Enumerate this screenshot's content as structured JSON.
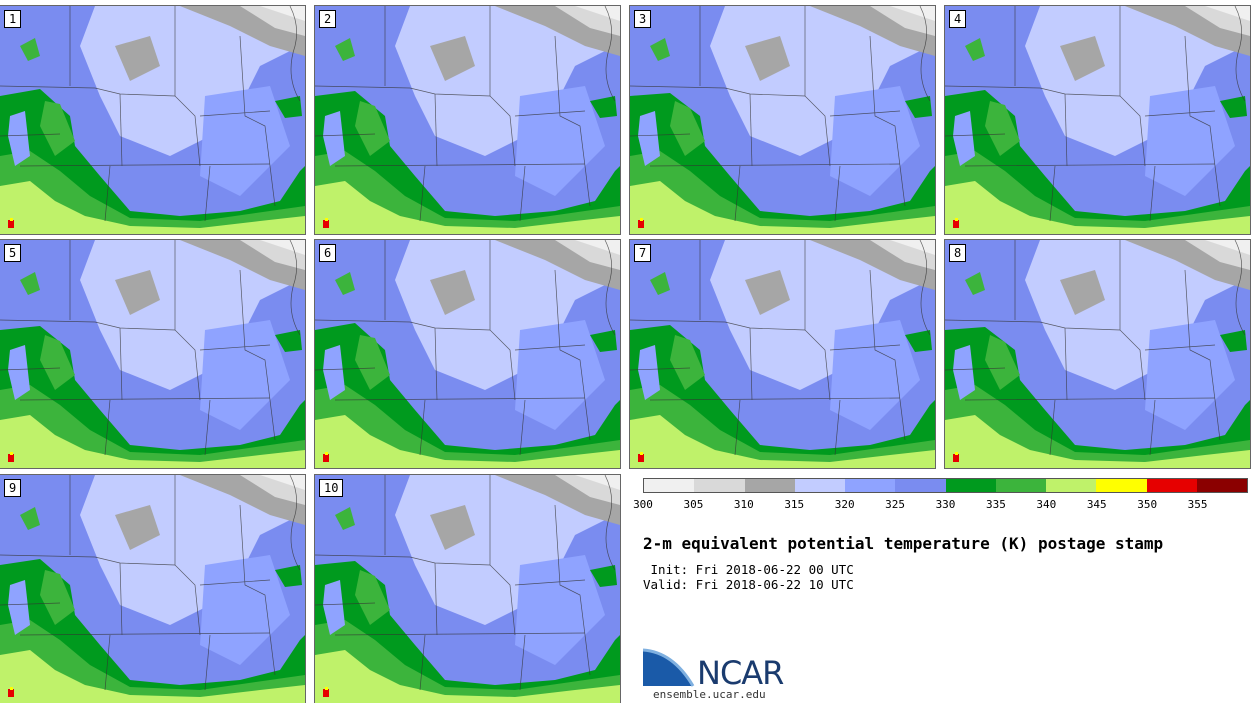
{
  "members": [
    {
      "label": "1"
    },
    {
      "label": "2"
    },
    {
      "label": "3"
    },
    {
      "label": "4"
    },
    {
      "label": "5"
    },
    {
      "label": "6"
    },
    {
      "label": "7"
    },
    {
      "label": "8"
    },
    {
      "label": "9"
    },
    {
      "label": "10"
    }
  ],
  "colorbar": {
    "colors": [
      "#f0f0f0",
      "#d9d9d9",
      "#a6a6a6",
      "#c2ccff",
      "#8fa3ff",
      "#7a8cf0",
      "#009a1e",
      "#3cb43c",
      "#bff26a",
      "#ffff00",
      "#e60000",
      "#8b0000"
    ],
    "ticks": [
      "300",
      "305",
      "310",
      "315",
      "320",
      "325",
      "330",
      "335",
      "340",
      "345",
      "350",
      "355"
    ]
  },
  "title": "2-m equivalent potential temperature (K) postage stamp",
  "init": " Init: Fri 2018-06-22 00 UTC",
  "valid": "Valid: Fri 2018-06-22 10 UTC",
  "logo": {
    "name": "NCAR",
    "url": "ensemble.ucar.edu"
  }
}
